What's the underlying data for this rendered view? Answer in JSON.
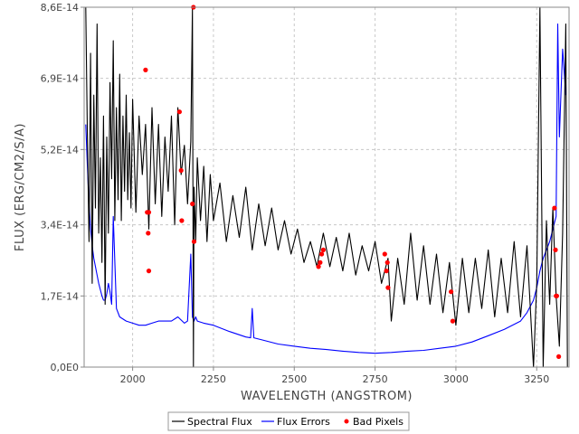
{
  "chart_data": {
    "type": "line",
    "title": "",
    "xlabel": "WAVELENGTH (ANGSTROM)",
    "ylabel": "FLUX (ERG/CM2/S/A)",
    "xlim": [
      1850,
      3350
    ],
    "ylim": [
      0,
      8.6e-14
    ],
    "x_ticks": [
      2000,
      2250,
      2500,
      2750,
      3000,
      3250
    ],
    "x_tick_labels": [
      "2000",
      "2250",
      "2500",
      "2750",
      "3000",
      "3250"
    ],
    "y_ticks": [
      0,
      1.7e-14,
      3.4e-14,
      5.2e-14,
      6.9e-14,
      8.6e-14
    ],
    "y_tick_labels": [
      "0,0E0",
      "1,7E-14",
      "3,4E-14",
      "5,2E-14",
      "6,9E-14",
      "8,6E-14"
    ],
    "grid": true,
    "legend_position": "bottom-center",
    "series": [
      {
        "name": "Spectral Flux",
        "color": "#000000",
        "x": [
          1855,
          1860,
          1865,
          1870,
          1875,
          1880,
          1885,
          1890,
          1895,
          1900,
          1905,
          1910,
          1915,
          1920,
          1925,
          1930,
          1935,
          1940,
          1945,
          1950,
          1955,
          1960,
          1965,
          1970,
          1975,
          1980,
          1985,
          1990,
          1995,
          2000,
          2010,
          2020,
          2030,
          2040,
          2050,
          2060,
          2070,
          2080,
          2090,
          2100,
          2110,
          2120,
          2130,
          2140,
          2150,
          2160,
          2170,
          2180,
          2185,
          2188,
          2190,
          2195,
          2200,
          2210,
          2220,
          2230,
          2240,
          2250,
          2270,
          2290,
          2310,
          2330,
          2350,
          2370,
          2390,
          2410,
          2430,
          2450,
          2470,
          2490,
          2510,
          2530,
          2550,
          2570,
          2590,
          2610,
          2630,
          2650,
          2670,
          2690,
          2710,
          2730,
          2750,
          2770,
          2790,
          2800,
          2820,
          2840,
          2860,
          2880,
          2900,
          2920,
          2940,
          2960,
          2980,
          3000,
          3020,
          3040,
          3060,
          3080,
          3100,
          3120,
          3140,
          3160,
          3180,
          3200,
          3220,
          3240,
          3250,
          3260,
          3270,
          3280,
          3290,
          3300,
          3310,
          3320,
          3330,
          3340,
          3345
        ],
        "values": [
          8.6e-14,
          5.5e-14,
          3e-14,
          7.5e-14,
          2e-14,
          6.5e-14,
          3.8e-14,
          8.2e-14,
          3.2e-14,
          5e-14,
          2.5e-14,
          6e-14,
          1.5e-14,
          5.5e-14,
          3.2e-14,
          6.8e-14,
          4.5e-14,
          7.8e-14,
          3.5e-14,
          6.2e-14,
          4e-14,
          7e-14,
          3.5e-14,
          6e-14,
          4.2e-14,
          6.5e-14,
          4e-14,
          5.6e-14,
          3.8e-14,
          6.4e-14,
          3.7e-14,
          6e-14,
          4.6e-14,
          5.8e-14,
          3.3e-14,
          6.2e-14,
          3.9e-14,
          5.8e-14,
          3.6e-14,
          5.5e-14,
          4.2e-14,
          6e-14,
          3.4e-14,
          6.2e-14,
          4.6e-14,
          5.3e-14,
          3.9e-14,
          5.4e-14,
          8.6e-14,
          0.0,
          4.3e-14,
          3e-14,
          5e-14,
          3.5e-14,
          4.8e-14,
          3e-14,
          4.6e-14,
          3.5e-14,
          4.4e-14,
          3e-14,
          4.1e-14,
          3.1e-14,
          4.3e-14,
          2.8e-14,
          3.9e-14,
          2.9e-14,
          3.8e-14,
          2.8e-14,
          3.5e-14,
          2.7e-14,
          3.3e-14,
          2.5e-14,
          3e-14,
          2.4e-14,
          3.2e-14,
          2.4e-14,
          3.1e-14,
          2.3e-14,
          3.2e-14,
          2.2e-14,
          2.9e-14,
          2.3e-14,
          3e-14,
          2e-14,
          2.6e-14,
          1.1e-14,
          2.6e-14,
          1.5e-14,
          3.2e-14,
          1.6e-14,
          2.9e-14,
          1.5e-14,
          2.7e-14,
          1.3e-14,
          2.5e-14,
          1e-14,
          2.6e-14,
          1.3e-14,
          2.6e-14,
          1.4e-14,
          2.8e-14,
          1.2e-14,
          2.6e-14,
          1.3e-14,
          3e-14,
          1.2e-14,
          2.9e-14,
          0.0,
          2e-14,
          8.6e-14,
          0.0,
          3.5e-14,
          1.5e-14,
          3.8e-14,
          1.7e-14,
          5e-15,
          3.2e-14,
          8.2e-14,
          0.0
        ]
      },
      {
        "name": "Flux Errors",
        "color": "#0000ff",
        "x": [
          1855,
          1860,
          1865,
          1870,
          1875,
          1880,
          1885,
          1890,
          1895,
          1900,
          1905,
          1910,
          1915,
          1920,
          1925,
          1930,
          1935,
          1940,
          1950,
          1960,
          1980,
          2000,
          2020,
          2040,
          2060,
          2080,
          2100,
          2120,
          2140,
          2160,
          2170,
          2180,
          2185,
          2190,
          2195,
          2200,
          2220,
          2250,
          2300,
          2350,
          2365,
          2370,
          2375,
          2400,
          2450,
          2500,
          2550,
          2600,
          2650,
          2700,
          2750,
          2800,
          2850,
          2900,
          2950,
          3000,
          3050,
          3100,
          3150,
          3200,
          3220,
          3240,
          3250,
          3260,
          3270,
          3280,
          3290,
          3300,
          3310,
          3315,
          3320,
          3330,
          3340
        ],
        "values": [
          5.8e-14,
          4.8e-14,
          3.9e-14,
          3.3e-14,
          2.9e-14,
          2.6e-14,
          2.4e-14,
          2.2e-14,
          2e-14,
          1.85e-14,
          1.7e-14,
          1.6e-14,
          1.6e-14,
          1.75e-14,
          2e-14,
          1.8e-14,
          1.5e-14,
          3.6e-14,
          1.4e-14,
          1.2e-14,
          1.1e-14,
          1.05e-14,
          1e-14,
          1e-14,
          1.05e-14,
          1.1e-14,
          1.1e-14,
          1.1e-14,
          1.2e-14,
          1.05e-14,
          1.1e-14,
          2.7e-14,
          1.2e-14,
          1.1e-14,
          1.2e-14,
          1.1e-14,
          1.05e-14,
          1e-14,
          8.5e-15,
          7.2e-15,
          7e-15,
          1.4e-14,
          7e-15,
          6.5e-15,
          5.5e-15,
          5e-15,
          4.5e-15,
          4.2e-15,
          3.8e-15,
          3.5e-15,
          3.3e-15,
          3.5e-15,
          3.8e-15,
          4e-15,
          4.5e-15,
          5e-15,
          6e-15,
          7.5e-15,
          9e-15,
          1.1e-14,
          1.3e-14,
          1.6e-14,
          1.9e-14,
          2.3e-14,
          2.6e-14,
          2.8e-14,
          3e-14,
          3.3e-14,
          3.6e-14,
          8.2e-14,
          5.5e-14,
          7.6e-14,
          6.5e-14
        ]
      },
      {
        "name": "Bad Pixels",
        "color": "#ff0000",
        "marker": "circle",
        "x": [
          2040,
          2045,
          2048,
          2050,
          2145,
          2150,
          2152,
          2185,
          2190,
          2188,
          2050,
          2575,
          2580,
          2585,
          2590,
          2780,
          2785,
          2788,
          2790,
          2985,
          2990,
          3305,
          3308,
          3310,
          3312,
          3318
        ],
        "values": [
          7.1e-14,
          3.7e-14,
          3.2e-14,
          2.3e-14,
          6.1e-14,
          4.7e-14,
          3.5e-14,
          3.9e-14,
          3e-14,
          8.6e-14,
          3.7e-14,
          2.4e-14,
          2.5e-14,
          2.7e-14,
          2.8e-14,
          2.7e-14,
          2.3e-14,
          2.5e-14,
          1.9e-14,
          1.8e-14,
          1.1e-14,
          3.8e-14,
          2.8e-14,
          1.7e-14,
          1.7e-14,
          2.5e-15
        ]
      }
    ]
  }
}
